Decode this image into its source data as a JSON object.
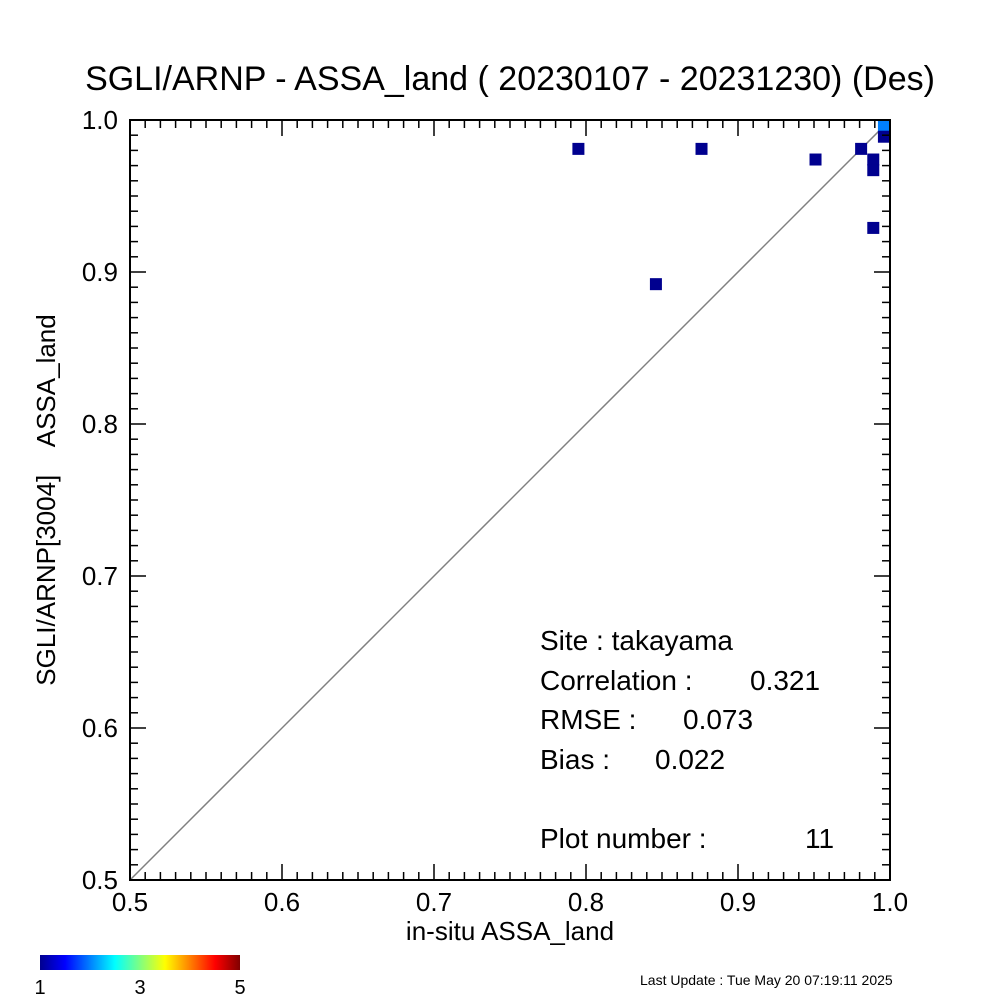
{
  "chart_data": {
    "type": "scatter",
    "title": "SGLI/ARNP - ASSA_land ( 20230107 - 20231230) (Des)",
    "xlabel": "in-situ ASSA_land",
    "ylabel": "SGLI/ARNP[3004]    ASSA_land",
    "xlim": [
      0.5,
      1.0
    ],
    "ylim": [
      0.5,
      1.0
    ],
    "x_ticks": [
      "0.5",
      "0.6",
      "0.7",
      "0.8",
      "0.9",
      "1.0"
    ],
    "y_ticks": [
      "0.5",
      "0.6",
      "0.7",
      "0.8",
      "0.9",
      "1.0"
    ],
    "one_to_one_line": true,
    "grid": false,
    "points": [
      {
        "x": 0.795,
        "y": 0.981,
        "count": 1
      },
      {
        "x": 0.846,
        "y": 0.892,
        "count": 1
      },
      {
        "x": 0.876,
        "y": 0.981,
        "count": 1
      },
      {
        "x": 0.951,
        "y": 0.974,
        "count": 1
      },
      {
        "x": 0.981,
        "y": 0.981,
        "count": 1
      },
      {
        "x": 0.989,
        "y": 0.974,
        "count": 1
      },
      {
        "x": 0.989,
        "y": 0.967,
        "count": 1
      },
      {
        "x": 0.989,
        "y": 0.929,
        "count": 1
      },
      {
        "x": 0.996,
        "y": 0.996,
        "count": 2
      },
      {
        "x": 0.996,
        "y": 0.989,
        "count": 1
      }
    ],
    "stats": {
      "site_label": "Site : takayama",
      "correlation_label": "Correlation :",
      "correlation_value": "0.321",
      "rmse_label": "RMSE :",
      "rmse_value": "0.073",
      "bias_label": "Bias :",
      "bias_value": "0.022",
      "plot_number_label": "Plot number :",
      "plot_number_value": "11"
    },
    "colorbar": {
      "min_label": "1",
      "mid_label": "3",
      "max_label": "5",
      "colors": [
        "#00008f",
        "#0000ff",
        "#0080ff",
        "#00ffff",
        "#80ff80",
        "#ffff00",
        "#ff8000",
        "#ff0000",
        "#800000"
      ]
    },
    "colors": {
      "line": "#808080"
    }
  },
  "footer": {
    "last_update": "Last Update : Tue May 20 07:19:11 2025"
  }
}
